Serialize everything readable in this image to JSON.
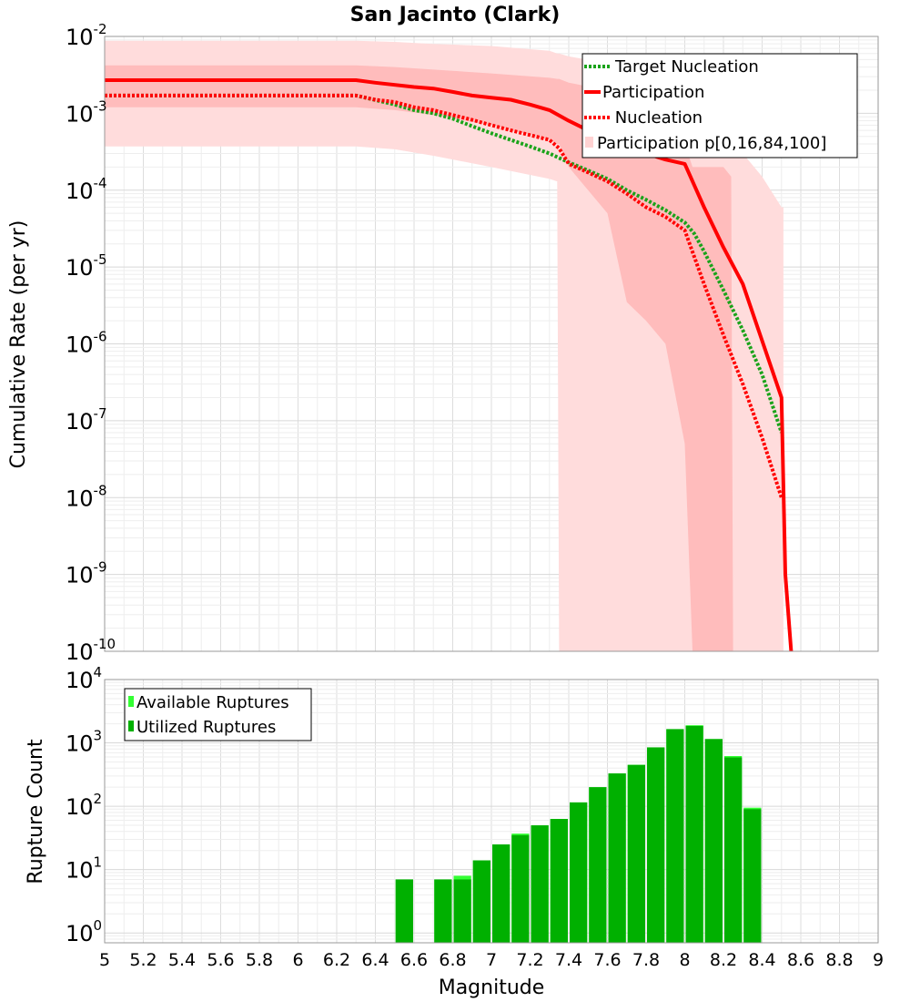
{
  "colors": {
    "participation": "#ff0000",
    "nucleation": "#ff0000",
    "target_nucleation": "#1aa31a",
    "band_outer": "#ffdcdc",
    "band_inner": "#ffbcbc",
    "available_ruptures": "#33ff33",
    "utilized_ruptures": "#00b000",
    "grid": "#e6e6e6"
  },
  "chart_data": [
    {
      "type": "line",
      "title": "San Jacinto (Clark)",
      "xlabel": "",
      "ylabel": "Cumulative Rate (per yr)",
      "xlim": [
        5,
        9
      ],
      "ylim": [
        1e-10,
        0.01
      ],
      "yscale": "log",
      "ytick_labels": [
        {
          "base": "10",
          "exp": "-2"
        },
        {
          "base": "10",
          "exp": "-3"
        },
        {
          "base": "10",
          "exp": "-4"
        },
        {
          "base": "10",
          "exp": "-5"
        },
        {
          "base": "10",
          "exp": "-6"
        },
        {
          "base": "10",
          "exp": "-7"
        },
        {
          "base": "10",
          "exp": "-8"
        },
        {
          "base": "10",
          "exp": "-9"
        },
        {
          "base": "10",
          "exp": "-10"
        }
      ],
      "grid": true,
      "legend_position": "top-right",
      "legend": [
        "Target Nucleation",
        "Participation",
        " Nucleation",
        "Participation p[0,16,84,100]"
      ],
      "series": [
        {
          "name": "Target Nucleation",
          "style": "dotted",
          "x": [
            5.0,
            6.3,
            6.5,
            6.6,
            6.7,
            6.8,
            6.9,
            7.0,
            7.1,
            7.2,
            7.3,
            7.4,
            7.5,
            7.6,
            7.7,
            7.8,
            7.9,
            8.0,
            8.05,
            8.1,
            8.2,
            8.3,
            8.4,
            8.5
          ],
          "values": [
            0.0017,
            0.0017,
            0.0013,
            0.0011,
            0.001,
            0.00085,
            0.00068,
            0.00055,
            0.00045,
            0.00037,
            0.0003,
            0.00023,
            0.00018,
            0.00014,
            0.0001,
            7.5e-05,
            5.5e-05,
            3.8e-05,
            2.7e-05,
            1.6e-05,
            5e-06,
            1.5e-06,
            4e-07,
            7e-08
          ]
        },
        {
          "name": "Participation",
          "style": "solid",
          "x": [
            5.0,
            6.3,
            6.4,
            6.6,
            6.7,
            6.8,
            6.9,
            7.0,
            7.1,
            7.2,
            7.3,
            7.4,
            7.5,
            7.6,
            7.7,
            7.8,
            7.9,
            8.0,
            8.1,
            8.2,
            8.3,
            8.4,
            8.5,
            8.52,
            8.55
          ],
          "values": [
            0.0027,
            0.0027,
            0.0025,
            0.0022,
            0.0021,
            0.0019,
            0.0017,
            0.0016,
            0.0015,
            0.0013,
            0.0011,
            0.0008,
            0.0006,
            0.0005,
            0.0004,
            0.0003,
            0.00025,
            0.00022,
            6e-05,
            1.8e-05,
            6e-06,
            1.1e-06,
            2e-07,
            1e-09,
            1e-10
          ]
        },
        {
          "name": " Nucleation",
          "style": "dotted",
          "x": [
            5.0,
            6.3,
            6.4,
            6.5,
            6.6,
            6.7,
            6.8,
            6.9,
            7.0,
            7.1,
            7.2,
            7.3,
            7.35,
            7.4,
            7.5,
            7.6,
            7.7,
            7.8,
            7.9,
            8.0,
            8.1,
            8.2,
            8.3,
            8.4,
            8.5
          ],
          "values": [
            0.0017,
            0.0017,
            0.0015,
            0.0014,
            0.0012,
            0.0011,
            0.00095,
            0.00082,
            0.0007,
            0.0006,
            0.00052,
            0.00045,
            0.00035,
            0.00022,
            0.00017,
            0.00013,
            9e-05,
            6e-05,
            4.5e-05,
            3e-05,
            6e-06,
            1.3e-06,
            3e-07,
            6e-08,
            1e-08
          ]
        },
        {
          "name": "Participation p[0,16,84,100]",
          "style": "band",
          "x": [
            5.0,
            6.3,
            6.5,
            6.7,
            7.0,
            7.3,
            7.34,
            7.35,
            7.4,
            7.6,
            7.7,
            7.8,
            7.9,
            8.0,
            8.04,
            8.05,
            8.2,
            8.24,
            8.25,
            8.3,
            8.4,
            8.5,
            8.51
          ],
          "p0": [
            0.00037,
            0.00037,
            0.00034,
            0.00028,
            0.0002,
            0.00014,
            0.00013,
            1e-10,
            1e-10,
            1e-10,
            1e-10,
            1e-10,
            1e-10,
            1e-10,
            1e-10,
            1e-10,
            1e-10,
            1e-10,
            1e-10,
            null,
            null,
            null,
            null
          ],
          "p16": [
            0.0012,
            0.0012,
            0.0011,
            0.00095,
            0.0007,
            0.00045,
            0.0004,
            0.0004,
            0.0002,
            5e-05,
            3.5e-06,
            2e-06,
            1e-06,
            5e-08,
            1e-10,
            null,
            null,
            null,
            null,
            null,
            null,
            null,
            null
          ],
          "p84": [
            0.0042,
            0.0042,
            0.004,
            0.0037,
            0.0033,
            0.0029,
            0.0028,
            0.0028,
            0.0025,
            0.002,
            0.0015,
            0.001,
            0.0007,
            0.0004,
            0.0002,
            0.0002,
            0.0002,
            0.00015,
            1e-10,
            null,
            null,
            null,
            null
          ],
          "p100": [
            0.0088,
            0.0088,
            0.0085,
            0.008,
            0.0075,
            0.0065,
            0.006,
            0.006,
            0.0055,
            0.0045,
            0.004,
            0.0035,
            0.0025,
            0.0015,
            0.0013,
            0.0013,
            0.0008,
            0.0006,
            0.0006,
            0.0003,
            0.00015,
            6e-05,
            6e-05
          ]
        }
      ]
    },
    {
      "type": "bar",
      "xlabel": "Magnitude",
      "ylabel": "Rupture Count",
      "xlim": [
        5,
        9
      ],
      "ylim": [
        0.7,
        10000
      ],
      "yscale": "log",
      "ytick_labels": [
        {
          "base": "10",
          "exp": "4"
        },
        {
          "base": "10",
          "exp": "3"
        },
        {
          "base": "10",
          "exp": "2"
        },
        {
          "base": "10",
          "exp": "1"
        },
        {
          "base": "10",
          "exp": "0"
        }
      ],
      "xticks": [
        "5",
        "5.2",
        "5.4",
        "5.6",
        "5.8",
        "6",
        "6.2",
        "6.4",
        "6.6",
        "6.8",
        "7",
        "7.2",
        "7.4",
        "7.6",
        "7.8",
        "8",
        "8.2",
        "8.4",
        "8.6",
        "8.8",
        "9"
      ],
      "grid": true,
      "legend_position": "top-left",
      "legend": [
        "Available Ruptures",
        "Utilized Ruptures"
      ],
      "bin_width": 0.1,
      "x": [
        6.55,
        6.75,
        6.85,
        6.95,
        7.05,
        7.15,
        7.25,
        7.35,
        7.45,
        7.55,
        7.65,
        7.75,
        7.85,
        7.95,
        8.05,
        8.15,
        8.25,
        8.35
      ],
      "series": [
        {
          "name": "Available Ruptures",
          "values": [
            7,
            7,
            8,
            14,
            25,
            37,
            50,
            63,
            115,
            200,
            330,
            450,
            850,
            1650,
            1900,
            1150,
            620,
            95
          ]
        },
        {
          "name": "Utilized Ruptures",
          "values": [
            7,
            7,
            7,
            14,
            25,
            35,
            50,
            63,
            115,
            200,
            330,
            450,
            850,
            1650,
            1850,
            1150,
            590,
            90
          ]
        }
      ]
    }
  ]
}
